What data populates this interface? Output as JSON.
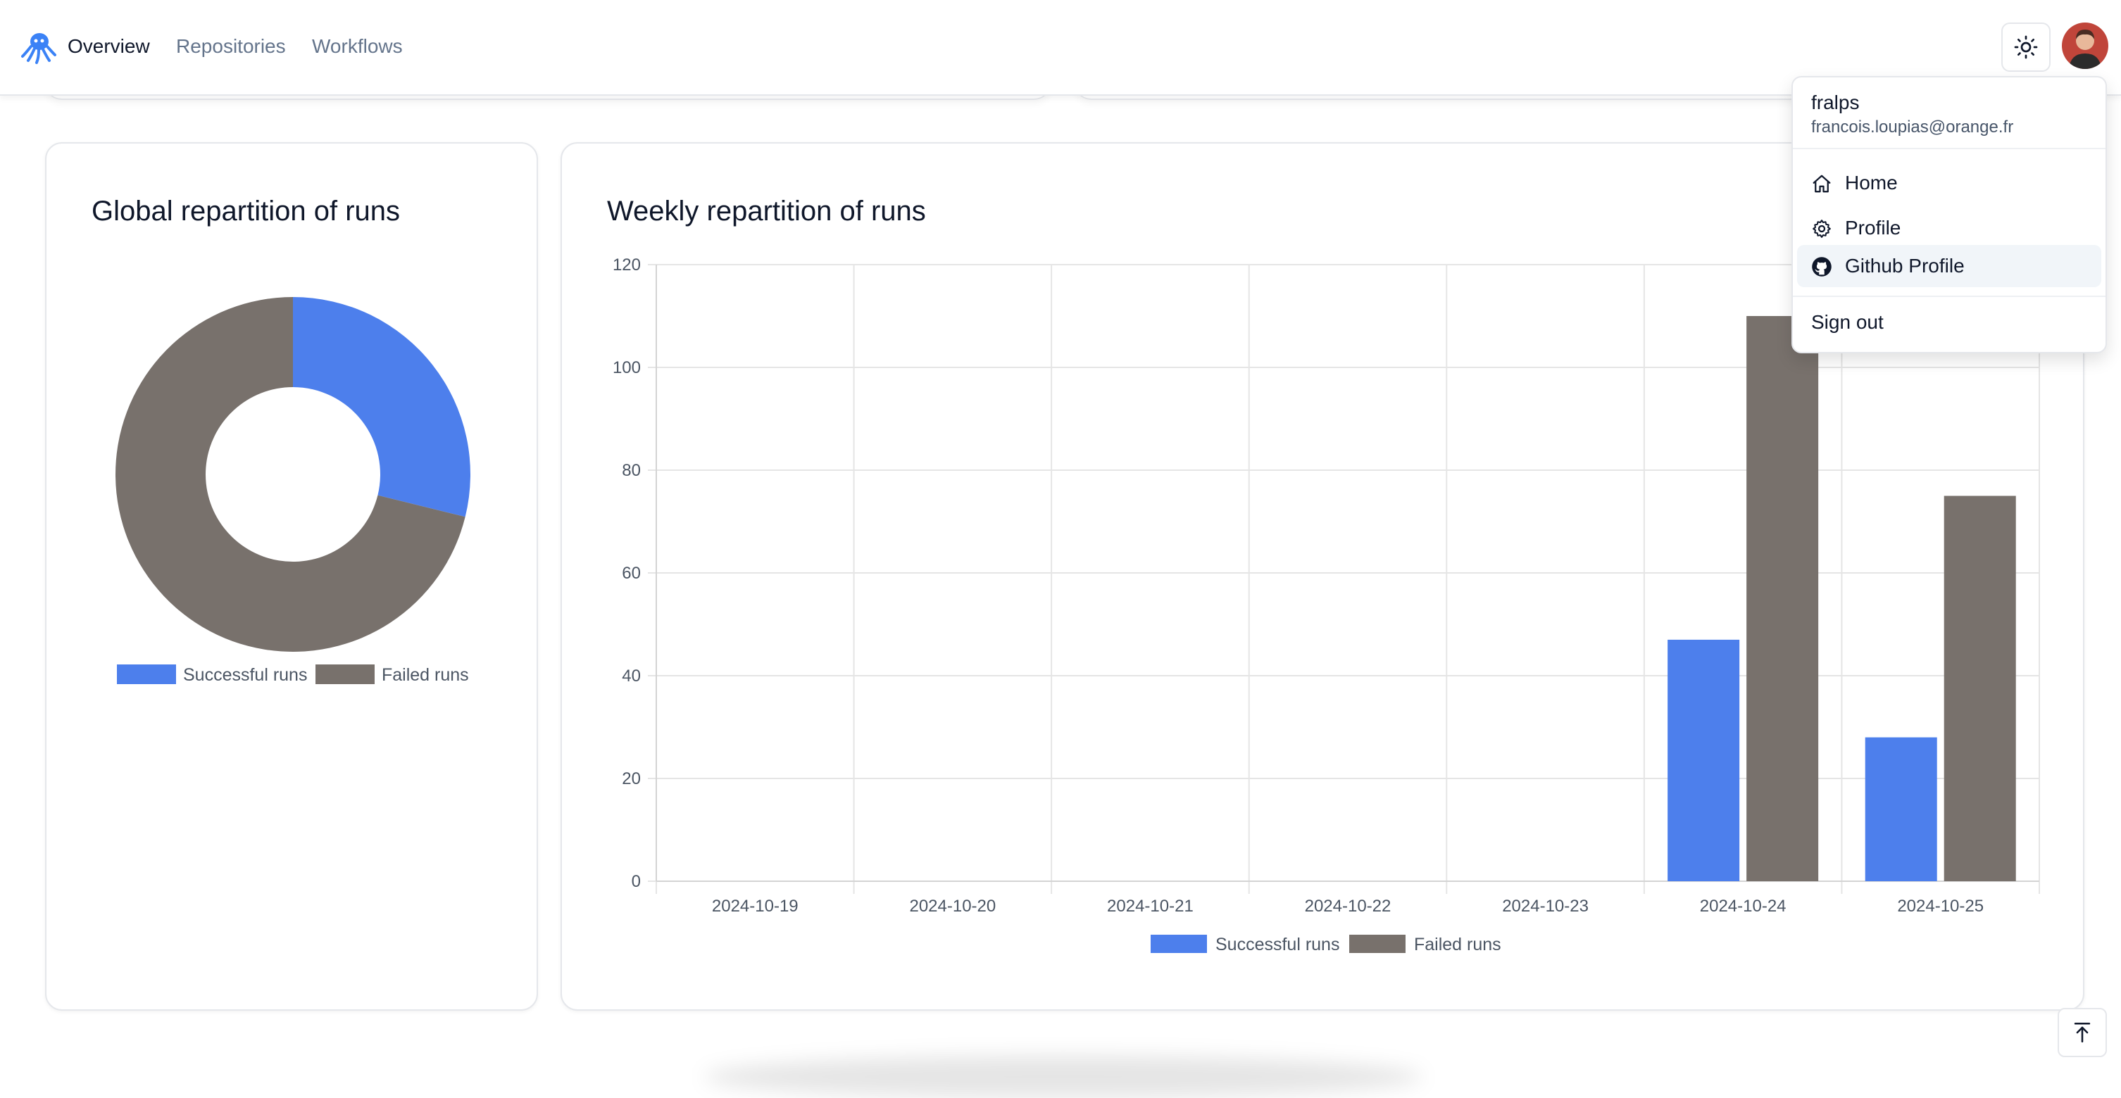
{
  "nav": {
    "logo_icon": "octopus-logo-icon",
    "overview": "Overview",
    "repositories": "Repositories",
    "workflows": "Workflows",
    "theme_icon": "sun-icon",
    "accent": "#3b82f6"
  },
  "dropdown": {
    "username": "fralps",
    "email": "francois.loupias@orange.fr",
    "items": [
      {
        "label": "Home",
        "icon": "home-icon"
      },
      {
        "label": "Profile",
        "icon": "gear-icon"
      },
      {
        "label": "Github Profile",
        "icon": "github-icon",
        "active": true
      }
    ],
    "signout": "Sign out"
  },
  "cards": {
    "donut_title": "Global repartition of runs",
    "bar_title": "Weekly repartition of runs"
  },
  "chart_data": [
    {
      "type": "pie",
      "title": "Global repartition of runs",
      "donut": true,
      "labels": [
        "Successful runs",
        "Failed runs"
      ],
      "values": [
        75,
        185
      ],
      "colors": [
        "#4d7fec",
        "#78716c"
      ],
      "legend_position": "bottom"
    },
    {
      "type": "bar",
      "title": "Weekly repartition of runs",
      "categories": [
        "2024-10-19",
        "2024-10-20",
        "2024-10-21",
        "2024-10-22",
        "2024-10-23",
        "2024-10-24",
        "2024-10-25"
      ],
      "series": [
        {
          "name": "Successful runs",
          "values": [
            0,
            0,
            0,
            0,
            0,
            47,
            28
          ],
          "color": "#4d7fec"
        },
        {
          "name": "Failed runs",
          "values": [
            0,
            0,
            0,
            0,
            0,
            110,
            75
          ],
          "color": "#78716c"
        }
      ],
      "ylim": [
        0,
        120
      ],
      "yticks": [
        "0",
        "20",
        "40",
        "60",
        "80",
        "100",
        "120"
      ],
      "grid": true,
      "legend_position": "bottom"
    }
  ],
  "scroll_top_icon": "arrow-up-to-line-icon"
}
